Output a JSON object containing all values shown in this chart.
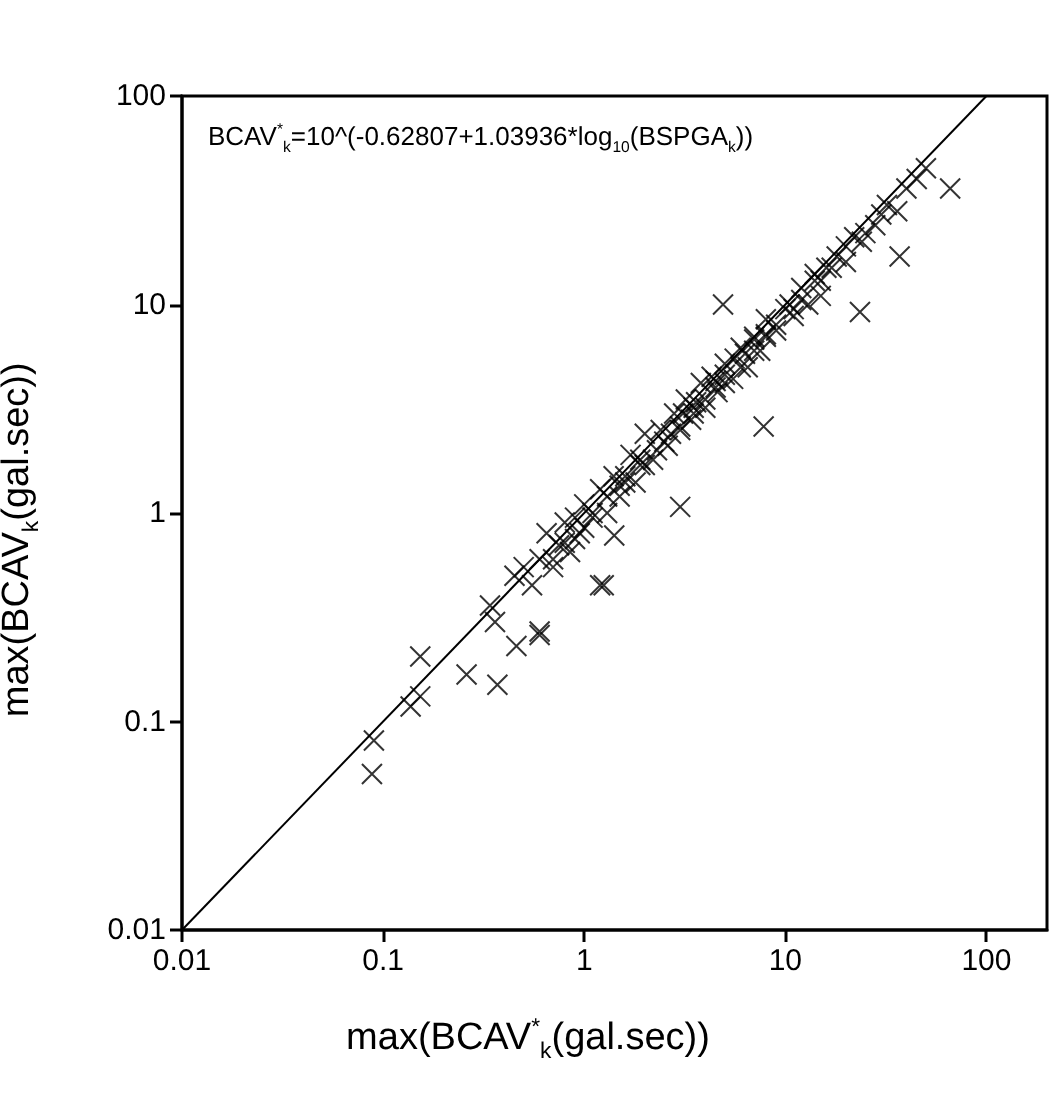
{
  "chart_data": {
    "type": "scatter",
    "xlabel": "max(BCAV$^{*}$$_{k}$(gal.sec))",
    "ylabel": "max(BCAV$_{k}$(gal.sec))",
    "annotations": [
      "BCAV$^{*}$$_{k}$=10^(-0.62807+1.03936*log$_{10}$(BSPGA$_{k}$))"
    ],
    "log": "xy",
    "xlim": [
      0.01,
      200
    ],
    "ylim": [
      0.01,
      100
    ],
    "xticks": [
      0.01,
      0.1,
      1,
      10,
      100
    ],
    "yticks": [
      0.01,
      0.1,
      1,
      10,
      100
    ],
    "grid": false,
    "series": [
      {
        "marker": "cross",
        "color": "#000000",
        "x": [
          0.09,
          0.088,
          0.153,
          0.137,
          0.153,
          0.26,
          0.37,
          0.34,
          0.36,
          0.46,
          0.6,
          0.45,
          1.2,
          1.41,
          4.9,
          66,
          37,
          23.5,
          7.8,
          3.0,
          1.25,
          0.6,
          50,
          0.5,
          0.55,
          0.6,
          0.65,
          0.7,
          0.75,
          0.8,
          0.85,
          0.9,
          0.95,
          1,
          1.1,
          1.2,
          1.3,
          1.4,
          1.5,
          1.6,
          1.7,
          1.8,
          1.9,
          2,
          2.2,
          2.4,
          2.6,
          2.8,
          3,
          3.2,
          3.4,
          3.6,
          3.8,
          4,
          4.3,
          4.6,
          5,
          5.5,
          6,
          6.5,
          7,
          7.5,
          8,
          9,
          10,
          11,
          12,
          13,
          14,
          15,
          16,
          18,
          20,
          22,
          25,
          28,
          32,
          36,
          40,
          45,
          0.7,
          0.9,
          1.1,
          1.3,
          1.6,
          1.9,
          2.3,
          2.7,
          3.1,
          3.5,
          4,
          4.5,
          5,
          5.6,
          6.3,
          7,
          8,
          9,
          10.5,
          12,
          14,
          17,
          20,
          24,
          30,
          1.5,
          2.5,
          3.5,
          4.5,
          6,
          8,
          11,
          15,
          0.8,
          1.0,
          2.0,
          3.0,
          5.0,
          7.0
        ],
        "values": [
          0.081,
          0.056,
          0.205,
          0.118,
          0.132,
          0.168,
          0.15,
          0.36,
          0.3,
          0.23,
          0.26,
          0.5,
          0.45,
          0.78,
          10,
          36,
          17,
          9.2,
          2.6,
          1.07,
          0.45,
          0.27,
          45,
          0.55,
          0.45,
          0.6,
          0.8,
          0.55,
          0.7,
          0.9,
          0.65,
          0.95,
          0.8,
          1.1,
          0.95,
          1.3,
          1.0,
          1.5,
          1.2,
          1.5,
          1.9,
          1.4,
          1.7,
          2.4,
          1.8,
          2.5,
          2.1,
          3.0,
          2.5,
          3.5,
          2.8,
          3.4,
          4.2,
          3.2,
          4.5,
          3.8,
          5.2,
          4.4,
          6.2,
          5.0,
          7.0,
          6.0,
          8.5,
          7.5,
          9.5,
          8.8,
          12,
          10,
          14,
          11,
          15,
          17,
          16,
          21,
          22,
          24,
          30,
          28,
          36,
          40,
          0.6,
          0.75,
          1.0,
          1.2,
          1.4,
          1.8,
          2.0,
          2.4,
          3.0,
          3.2,
          3.5,
          4.3,
          4.6,
          5.5,
          5.8,
          6.8,
          7.2,
          8.0,
          10,
          10.5,
          13,
          15,
          19,
          20,
          27,
          1.35,
          2.2,
          3.0,
          4.0,
          5.0,
          7.0,
          9.5,
          13,
          0.72,
          0.85,
          1.7,
          2.6,
          4.2,
          6.0
        ]
      },
      {
        "type": "line",
        "color": "#000000",
        "x": [
          0.01,
          100
        ],
        "values": [
          0.01,
          100
        ]
      }
    ]
  }
}
